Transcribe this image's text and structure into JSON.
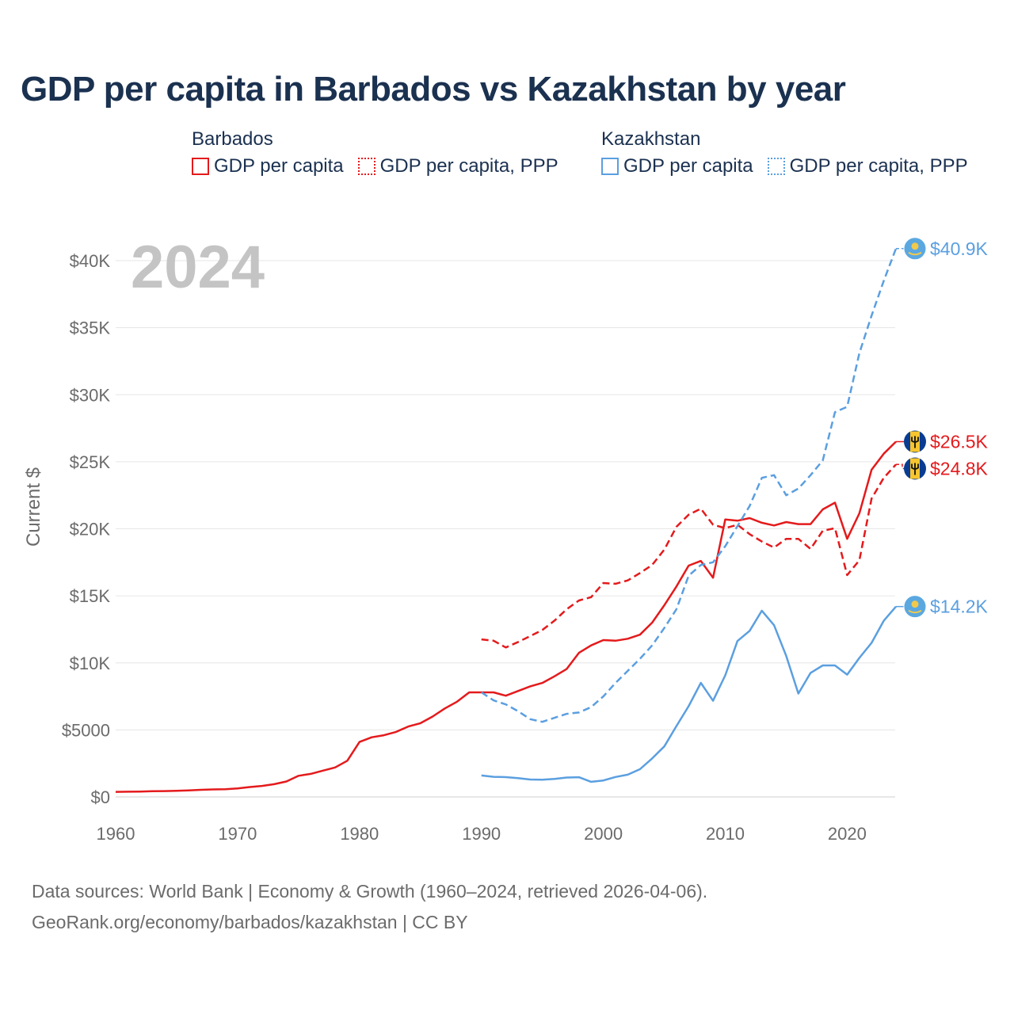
{
  "title": "GDP per capita in Barbados vs Kazakhstan by year",
  "legend": {
    "groups": [
      {
        "name": "Barbados",
        "color": "#e41a1c",
        "items": [
          {
            "label": "GDP per capita",
            "style": "solid"
          },
          {
            "label": "GDP per capita, PPP",
            "style": "dotted"
          }
        ]
      },
      {
        "name": "Kazakhstan",
        "color": "#5b9fe0",
        "items": [
          {
            "label": "GDP per capita",
            "style": "solid"
          },
          {
            "label": "GDP per capita, PPP",
            "style": "dotted"
          }
        ]
      }
    ]
  },
  "footer": {
    "line1": "Data sources: World Bank | Economy & Growth (1960–2024, retrieved 2026-04-06).",
    "line2": "GeoRank.org/economy/barbados/kazakhstan | CC BY"
  },
  "chart_data": {
    "type": "line",
    "title": "GDP per capita in Barbados vs Kazakhstan by year",
    "year_label": "2024",
    "xlabel": "",
    "ylabel": "Current $",
    "xlim": [
      1960,
      2024
    ],
    "ylim": [
      0,
      42000
    ],
    "xticks": [
      1960,
      1970,
      1980,
      1990,
      2000,
      2010,
      2020
    ],
    "yticks": [
      {
        "value": 0,
        "label": "$0"
      },
      {
        "value": 5000,
        "label": "$5000"
      },
      {
        "value": 10000,
        "label": "$10K"
      },
      {
        "value": 15000,
        "label": "$15K"
      },
      {
        "value": 20000,
        "label": "$20K"
      },
      {
        "value": 25000,
        "label": "$25K"
      },
      {
        "value": 30000,
        "label": "$30K"
      },
      {
        "value": 35000,
        "label": "$35K"
      },
      {
        "value": 40000,
        "label": "$40K"
      }
    ],
    "series": [
      {
        "name": "Barbados GDP per capita",
        "country": "Barbados",
        "color": "#e41a1c",
        "dash": "solid",
        "end_label": "$26.5K",
        "flag": "barbados",
        "x": [
          1960,
          1961,
          1962,
          1963,
          1964,
          1965,
          1966,
          1967,
          1968,
          1969,
          1970,
          1971,
          1972,
          1973,
          1974,
          1975,
          1976,
          1977,
          1978,
          1979,
          1980,
          1981,
          1982,
          1983,
          1984,
          1985,
          1986,
          1987,
          1988,
          1989,
          1990,
          1991,
          1992,
          1993,
          1994,
          1995,
          1996,
          1997,
          1998,
          1999,
          2000,
          2001,
          2002,
          2003,
          2004,
          2005,
          2006,
          2007,
          2008,
          2009,
          2010,
          2011,
          2012,
          2013,
          2014,
          2015,
          2016,
          2017,
          2018,
          2019,
          2020,
          2021,
          2022,
          2023,
          2024
        ],
        "values": [
          380,
          390,
          400,
          430,
          440,
          460,
          490,
          530,
          560,
          580,
          640,
          740,
          820,
          950,
          1150,
          1580,
          1720,
          1960,
          2200,
          2700,
          4100,
          4450,
          4600,
          4850,
          5250,
          5500,
          6000,
          6600,
          7100,
          7800,
          7800,
          7800,
          7550,
          7900,
          8250,
          8500,
          9000,
          9550,
          10750,
          11300,
          11700,
          11650,
          11800,
          12100,
          13000,
          14300,
          15700,
          17250,
          17600,
          16350,
          20700,
          20600,
          20800,
          20450,
          20250,
          20500,
          20350,
          20350,
          21450,
          21950,
          19250,
          21150,
          24400,
          25600,
          26500
        ]
      },
      {
        "name": "Barbados GDP per capita, PPP",
        "country": "Barbados",
        "color": "#e41a1c",
        "dash": "dashed",
        "end_label": "$24.8K",
        "flag": "barbados",
        "x": [
          1990,
          1991,
          1992,
          1993,
          1994,
          1995,
          1996,
          1997,
          1998,
          1999,
          2000,
          2001,
          2002,
          2003,
          2004,
          2005,
          2006,
          2007,
          2008,
          2009,
          2010,
          2011,
          2012,
          2013,
          2014,
          2015,
          2016,
          2017,
          2018,
          2019,
          2020,
          2021,
          2022,
          2023,
          2024
        ],
        "values": [
          11750,
          11650,
          11150,
          11550,
          12000,
          12450,
          13150,
          14000,
          14650,
          14900,
          15950,
          15900,
          16150,
          16700,
          17300,
          18450,
          20150,
          21050,
          21500,
          20300,
          20050,
          20300,
          19600,
          19050,
          18600,
          19250,
          19250,
          18500,
          19850,
          20050,
          16550,
          17650,
          22250,
          23800,
          24800
        ]
      },
      {
        "name": "Kazakhstan GDP per capita",
        "country": "Kazakhstan",
        "color": "#5b9fe0",
        "dash": "solid",
        "end_label": "$14.2K",
        "flag": "kazakhstan",
        "x": [
          1990,
          1991,
          1992,
          1993,
          1994,
          1995,
          1996,
          1997,
          1998,
          1999,
          2000,
          2001,
          2002,
          2003,
          2004,
          2005,
          2006,
          2007,
          2008,
          2009,
          2010,
          2011,
          2012,
          2013,
          2014,
          2015,
          2016,
          2017,
          2018,
          2019,
          2020,
          2021,
          2022,
          2023,
          2024
        ],
        "values": [
          1600,
          1500,
          1480,
          1400,
          1300,
          1280,
          1350,
          1450,
          1470,
          1130,
          1230,
          1490,
          1660,
          2070,
          2870,
          3770,
          5290,
          6770,
          8510,
          7170,
          9070,
          11630,
          12390,
          13890,
          12810,
          10510,
          7710,
          9250,
          9810,
          9810,
          9120,
          10370,
          11490,
          13140,
          14200
        ]
      },
      {
        "name": "Kazakhstan GDP per capita, PPP",
        "country": "Kazakhstan",
        "color": "#5b9fe0",
        "dash": "dashed",
        "end_label": "$40.9K",
        "flag": "kazakhstan",
        "x": [
          1990,
          1991,
          1992,
          1993,
          1994,
          1995,
          1996,
          1997,
          1998,
          1999,
          2000,
          2001,
          2002,
          2003,
          2004,
          2005,
          2006,
          2007,
          2008,
          2009,
          2010,
          2011,
          2012,
          2013,
          2014,
          2015,
          2016,
          2017,
          2018,
          2019,
          2020,
          2021,
          2022,
          2023,
          2024
        ],
        "values": [
          7800,
          7200,
          6900,
          6400,
          5800,
          5600,
          5900,
          6200,
          6300,
          6700,
          7500,
          8500,
          9400,
          10300,
          11300,
          12600,
          14000,
          16500,
          17300,
          17500,
          18700,
          20200,
          21700,
          23800,
          24000,
          22500,
          23000,
          24000,
          25100,
          28700,
          29100,
          33100,
          35900,
          38500,
          40900
        ]
      }
    ]
  }
}
